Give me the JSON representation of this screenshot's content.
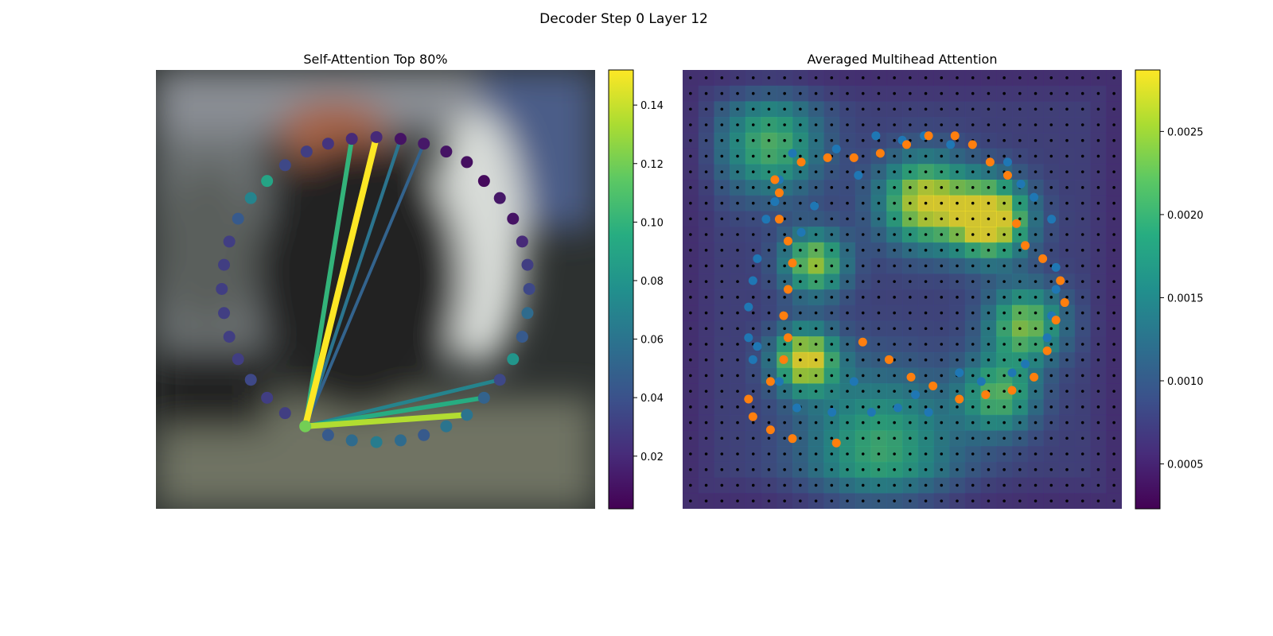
{
  "figure": {
    "title": "Decoder Step 0 Layer 12"
  },
  "chart_data": [
    {
      "type": "scatter",
      "title": "Self-Attention Top 80%",
      "xlim": [
        0,
        1
      ],
      "ylim": [
        0,
        1
      ],
      "colormap": "viridis",
      "colorbar": {
        "min": 0.002,
        "max": 0.152,
        "ticks": [
          0.02,
          0.04,
          0.06,
          0.08,
          0.1,
          0.12,
          0.14
        ],
        "tick_labels": [
          "0.02",
          "0.04",
          "0.06",
          "0.08",
          "0.10",
          "0.12",
          "0.14"
        ]
      },
      "query_point": {
        "x": 0.34,
        "y": 0.188,
        "value": 0.12
      },
      "points": [
        {
          "x": 0.502,
          "y": 0.847,
          "value": 0.02
        },
        {
          "x": 0.557,
          "y": 0.843,
          "value": 0.01
        },
        {
          "x": 0.61,
          "y": 0.832,
          "value": 0.012
        },
        {
          "x": 0.661,
          "y": 0.814,
          "value": 0.01
        },
        {
          "x": 0.708,
          "y": 0.79,
          "value": 0.008
        },
        {
          "x": 0.747,
          "y": 0.747,
          "value": 0.006
        },
        {
          "x": 0.783,
          "y": 0.708,
          "value": 0.012
        },
        {
          "x": 0.813,
          "y": 0.661,
          "value": 0.01
        },
        {
          "x": 0.834,
          "y": 0.609,
          "value": 0.02
        },
        {
          "x": 0.846,
          "y": 0.556,
          "value": 0.03
        },
        {
          "x": 0.85,
          "y": 0.501,
          "value": 0.035
        },
        {
          "x": 0.846,
          "y": 0.446,
          "value": 0.055
        },
        {
          "x": 0.834,
          "y": 0.392,
          "value": 0.045
        },
        {
          "x": 0.813,
          "y": 0.341,
          "value": 0.08
        },
        {
          "x": 0.783,
          "y": 0.294,
          "value": 0.035
        },
        {
          "x": 0.747,
          "y": 0.253,
          "value": 0.05
        },
        {
          "x": 0.708,
          "y": 0.214,
          "value": 0.06
        },
        {
          "x": 0.661,
          "y": 0.188,
          "value": 0.06
        },
        {
          "x": 0.61,
          "y": 0.168,
          "value": 0.045
        },
        {
          "x": 0.557,
          "y": 0.156,
          "value": 0.055
        },
        {
          "x": 0.502,
          "y": 0.152,
          "value": 0.065
        },
        {
          "x": 0.446,
          "y": 0.156,
          "value": 0.055
        },
        {
          "x": 0.392,
          "y": 0.168,
          "value": 0.045
        },
        {
          "x": 0.294,
          "y": 0.218,
          "value": 0.03
        },
        {
          "x": 0.253,
          "y": 0.253,
          "value": 0.03
        },
        {
          "x": 0.216,
          "y": 0.294,
          "value": 0.035
        },
        {
          "x": 0.187,
          "y": 0.341,
          "value": 0.03
        },
        {
          "x": 0.167,
          "y": 0.392,
          "value": 0.03
        },
        {
          "x": 0.155,
          "y": 0.446,
          "value": 0.03
        },
        {
          "x": 0.15,
          "y": 0.501,
          "value": 0.03
        },
        {
          "x": 0.155,
          "y": 0.556,
          "value": 0.03
        },
        {
          "x": 0.167,
          "y": 0.609,
          "value": 0.03
        },
        {
          "x": 0.187,
          "y": 0.661,
          "value": 0.045
        },
        {
          "x": 0.216,
          "y": 0.708,
          "value": 0.07
        },
        {
          "x": 0.253,
          "y": 0.747,
          "value": 0.09
        },
        {
          "x": 0.294,
          "y": 0.783,
          "value": 0.035
        },
        {
          "x": 0.343,
          "y": 0.814,
          "value": 0.03
        },
        {
          "x": 0.392,
          "y": 0.832,
          "value": 0.025
        },
        {
          "x": 0.446,
          "y": 0.843,
          "value": 0.02
        }
      ],
      "attention_lines": [
        {
          "to": 0.502,
          "to_y": 0.847,
          "value": 0.152
        },
        {
          "to": 0.446,
          "to_y": 0.843,
          "value": 0.1
        },
        {
          "to": 0.557,
          "to_y": 0.843,
          "value": 0.06
        },
        {
          "to": 0.708,
          "to_y": 0.214,
          "value": 0.135
        },
        {
          "to": 0.747,
          "to_y": 0.253,
          "value": 0.095
        },
        {
          "to": 0.783,
          "to_y": 0.294,
          "value": 0.07
        },
        {
          "to": 0.61,
          "to_y": 0.832,
          "value": 0.05
        }
      ]
    },
    {
      "type": "heatmap",
      "title": "Averaged Multihead Attention",
      "xlim": [
        0,
        1
      ],
      "ylim": [
        0,
        1
      ],
      "colormap": "viridis",
      "colorbar": {
        "min": 0.00023,
        "max": 0.00287,
        "ticks": [
          0.0005,
          0.001,
          0.0015,
          0.002,
          0.0025
        ],
        "tick_labels": [
          "0.0005",
          "0.0010",
          "0.0015",
          "0.0020",
          "0.0025"
        ]
      },
      "grid_size": 28,
      "hotspots": [
        {
          "x": 0.7,
          "y": 0.34,
          "weight": 1.0,
          "spread": 0.06
        },
        {
          "x": 0.55,
          "y": 0.3,
          "weight": 0.8,
          "spread": 0.07
        },
        {
          "x": 0.28,
          "y": 0.66,
          "weight": 0.85,
          "spread": 0.05
        },
        {
          "x": 0.3,
          "y": 0.44,
          "weight": 0.7,
          "spread": 0.05
        },
        {
          "x": 0.78,
          "y": 0.58,
          "weight": 0.65,
          "spread": 0.06
        },
        {
          "x": 0.72,
          "y": 0.74,
          "weight": 0.55,
          "spread": 0.06
        },
        {
          "x": 0.2,
          "y": 0.17,
          "weight": 0.55,
          "spread": 0.08
        },
        {
          "x": 0.45,
          "y": 0.86,
          "weight": 0.5,
          "spread": 0.12
        }
      ],
      "series": [
        {
          "color": "#1f77b4",
          "points": [
            [
              0.44,
              0.85
            ],
            [
              0.5,
              0.84
            ],
            [
              0.55,
              0.85
            ],
            [
              0.61,
              0.83
            ],
            [
              0.66,
              0.83
            ],
            [
              0.7,
              0.79
            ],
            [
              0.74,
              0.79
            ],
            [
              0.77,
              0.74
            ],
            [
              0.8,
              0.71
            ],
            [
              0.84,
              0.66
            ],
            [
              0.85,
              0.55
            ],
            [
              0.85,
              0.5
            ],
            [
              0.84,
              0.44
            ],
            [
              0.83,
              0.39
            ],
            [
              0.78,
              0.33
            ],
            [
              0.75,
              0.31
            ],
            [
              0.68,
              0.29
            ],
            [
              0.63,
              0.31
            ],
            [
              0.56,
              0.22
            ],
            [
              0.53,
              0.26
            ],
            [
              0.49,
              0.23
            ],
            [
              0.43,
              0.22
            ],
            [
              0.39,
              0.29
            ],
            [
              0.34,
              0.22
            ],
            [
              0.26,
              0.23
            ],
            [
              0.22,
              0.29
            ],
            [
              0.16,
              0.34
            ],
            [
              0.17,
              0.37
            ],
            [
              0.15,
              0.39
            ],
            [
              0.15,
              0.46
            ],
            [
              0.16,
              0.52
            ],
            [
              0.17,
              0.57
            ],
            [
              0.19,
              0.66
            ],
            [
              0.21,
              0.7
            ],
            [
              0.22,
              0.75
            ],
            [
              0.25,
              0.81
            ],
            [
              0.35,
              0.82
            ],
            [
              0.4,
              0.76
            ],
            [
              0.3,
              0.69
            ],
            [
              0.27,
              0.63
            ]
          ]
        },
        {
          "color": "#ff7f0e",
          "points": [
            [
              0.35,
              0.15
            ],
            [
              0.25,
              0.16
            ],
            [
              0.2,
              0.18
            ],
            [
              0.16,
              0.21
            ],
            [
              0.15,
              0.25
            ],
            [
              0.2,
              0.29
            ],
            [
              0.23,
              0.34
            ],
            [
              0.24,
              0.39
            ],
            [
              0.23,
              0.44
            ],
            [
              0.24,
              0.5
            ],
            [
              0.25,
              0.56
            ],
            [
              0.24,
              0.61
            ],
            [
              0.22,
              0.66
            ],
            [
              0.22,
              0.72
            ],
            [
              0.21,
              0.75
            ],
            [
              0.27,
              0.79
            ],
            [
              0.33,
              0.8
            ],
            [
              0.39,
              0.8
            ],
            [
              0.45,
              0.81
            ],
            [
              0.51,
              0.83
            ],
            [
              0.56,
              0.85
            ],
            [
              0.62,
              0.85
            ],
            [
              0.66,
              0.83
            ],
            [
              0.7,
              0.79
            ],
            [
              0.74,
              0.76
            ],
            [
              0.76,
              0.65
            ],
            [
              0.78,
              0.6
            ],
            [
              0.82,
              0.57
            ],
            [
              0.86,
              0.52
            ],
            [
              0.87,
              0.47
            ],
            [
              0.85,
              0.43
            ],
            [
              0.83,
              0.36
            ],
            [
              0.8,
              0.3
            ],
            [
              0.75,
              0.27
            ],
            [
              0.69,
              0.26
            ],
            [
              0.63,
              0.25
            ],
            [
              0.57,
              0.28
            ],
            [
              0.52,
              0.3
            ],
            [
              0.47,
              0.34
            ],
            [
              0.41,
              0.38
            ]
          ]
        }
      ]
    }
  ]
}
